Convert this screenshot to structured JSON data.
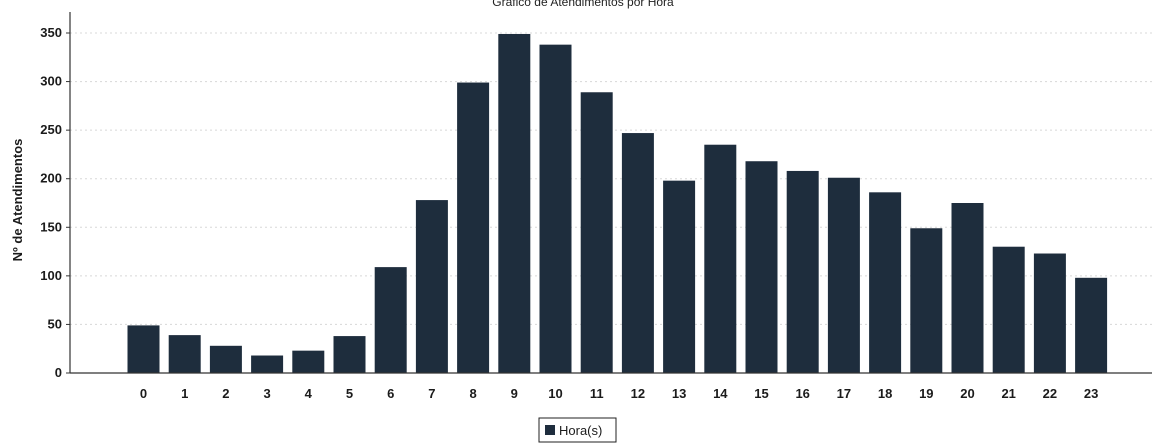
{
  "chart_data": {
    "type": "bar",
    "title": "Gráfico de Atendimentos por Hora",
    "xlabel": "",
    "ylabel": "Nº de Atendimentos",
    "ylim": [
      0,
      350
    ],
    "yticks": [
      0,
      50,
      100,
      150,
      200,
      250,
      300,
      350
    ],
    "categories": [
      "0",
      "1",
      "2",
      "3",
      "4",
      "5",
      "6",
      "7",
      "8",
      "9",
      "10",
      "11",
      "12",
      "13",
      "14",
      "15",
      "16",
      "17",
      "18",
      "19",
      "20",
      "21",
      "22",
      "23"
    ],
    "series": [
      {
        "name": "Hora(s)",
        "color": "#1e2d3d",
        "values": [
          49,
          39,
          28,
          18,
          23,
          38,
          109,
          178,
          299,
          349,
          338,
          289,
          247,
          198,
          235,
          218,
          208,
          201,
          186,
          149,
          175,
          130,
          123,
          98
        ]
      }
    ],
    "grid": true,
    "legend": "bottom-center"
  }
}
